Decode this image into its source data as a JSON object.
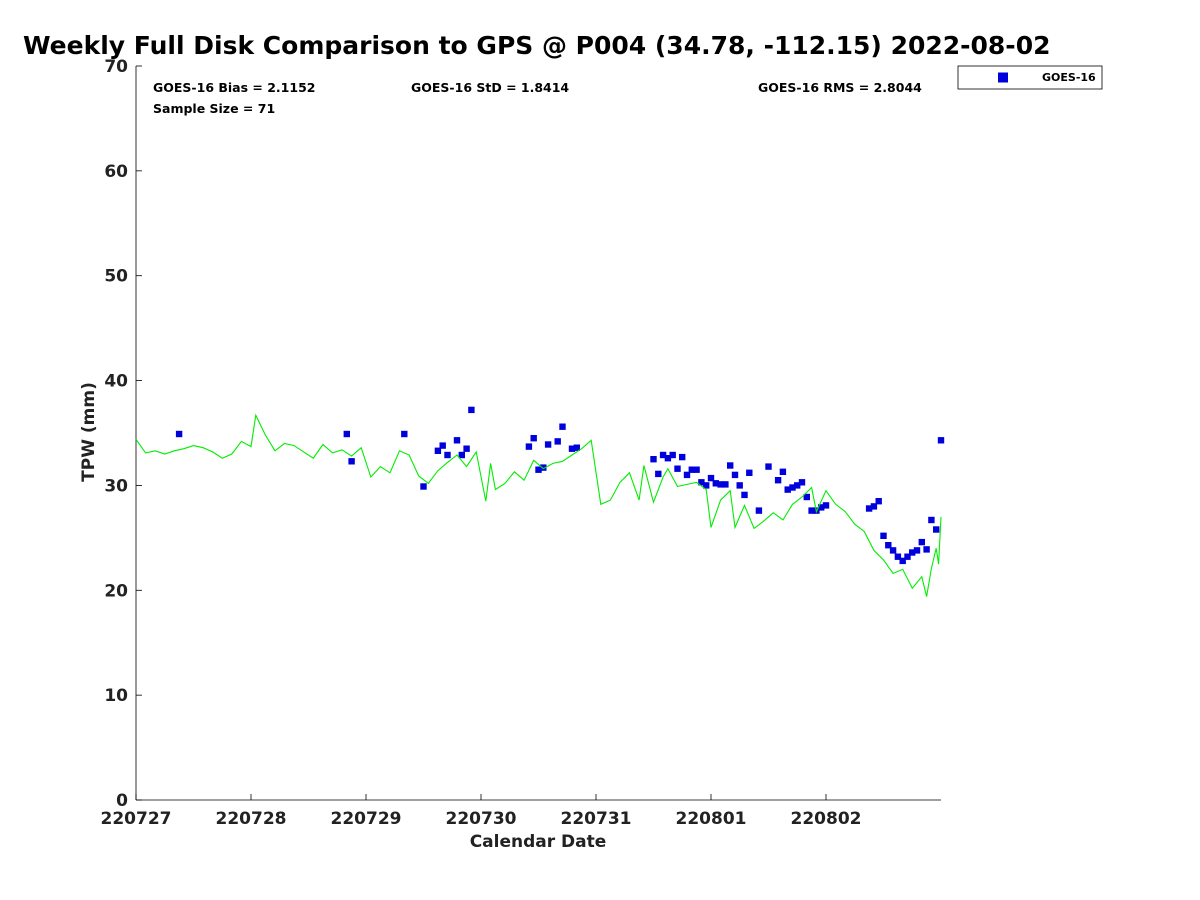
{
  "chart_data": {
    "type": "scatter",
    "title": "Weekly Full Disk Comparison to GPS @ P004 (34.78, -112.15) 2022-08-02",
    "xlabel": "Calendar Date",
    "ylabel": "TPW (mm)",
    "ylim": [
      0,
      70
    ],
    "xlim": [
      "2022-07-27",
      "2022-08-03"
    ],
    "yticks": [
      0,
      10,
      20,
      30,
      40,
      50,
      60,
      70
    ],
    "xticks": [
      "220727",
      "220728",
      "220729",
      "220730",
      "220731",
      "220801",
      "220802"
    ],
    "grid": false,
    "legend_position": "top-right",
    "stats": {
      "bias": "GOES-16 Bias = 2.1152",
      "std": "GOES-16 StD = 1.8414",
      "rms": "GOES-16 RMS = 2.8044",
      "sample": "Sample Size = 71"
    },
    "series": [
      {
        "name": "GOES-16",
        "kind": "scatter",
        "color": "#0000dd",
        "marker": "square",
        "points": [
          [
            "2022-07-27T09:00",
            34.9
          ],
          [
            "2022-07-28T20:00",
            34.9
          ],
          [
            "2022-07-28T21:00",
            32.3
          ],
          [
            "2022-07-29T08:00",
            34.9
          ],
          [
            "2022-07-29T12:00",
            29.9
          ],
          [
            "2022-07-29T15:00",
            33.3
          ],
          [
            "2022-07-29T16:00",
            33.8
          ],
          [
            "2022-07-29T17:00",
            32.9
          ],
          [
            "2022-07-29T19:00",
            34.3
          ],
          [
            "2022-07-29T20:00",
            32.9
          ],
          [
            "2022-07-29T21:00",
            33.5
          ],
          [
            "2022-07-29T22:00",
            37.2
          ],
          [
            "2022-07-30T10:00",
            33.7
          ],
          [
            "2022-07-30T11:00",
            34.5
          ],
          [
            "2022-07-30T12:00",
            31.5
          ],
          [
            "2022-07-30T13:00",
            31.7
          ],
          [
            "2022-07-30T14:00",
            33.9
          ],
          [
            "2022-07-30T16:00",
            34.2
          ],
          [
            "2022-07-30T17:00",
            35.6
          ],
          [
            "2022-07-30T19:00",
            33.5
          ],
          [
            "2022-07-30T20:00",
            33.6
          ],
          [
            "2022-07-31T12:00",
            32.5
          ],
          [
            "2022-07-31T13:00",
            31.1
          ],
          [
            "2022-07-31T14:00",
            32.9
          ],
          [
            "2022-07-31T15:00",
            32.6
          ],
          [
            "2022-07-31T16:00",
            32.9
          ],
          [
            "2022-07-31T17:00",
            31.6
          ],
          [
            "2022-07-31T18:00",
            32.7
          ],
          [
            "2022-07-31T19:00",
            31.0
          ],
          [
            "2022-07-31T20:00",
            31.5
          ],
          [
            "2022-07-31T21:00",
            31.5
          ],
          [
            "2022-07-31T22:00",
            30.3
          ],
          [
            "2022-07-31T23:00",
            30.0
          ],
          [
            "2022-08-01T00:00",
            30.7
          ],
          [
            "2022-08-01T01:00",
            30.2
          ],
          [
            "2022-08-01T02:00",
            30.1
          ],
          [
            "2022-08-01T03:00",
            30.1
          ],
          [
            "2022-08-01T04:00",
            31.9
          ],
          [
            "2022-08-01T05:00",
            31.0
          ],
          [
            "2022-08-01T06:00",
            30.0
          ],
          [
            "2022-08-01T07:00",
            29.1
          ],
          [
            "2022-08-01T08:00",
            31.2
          ],
          [
            "2022-08-01T10:00",
            27.6
          ],
          [
            "2022-08-01T12:00",
            31.8
          ],
          [
            "2022-08-01T14:00",
            30.5
          ],
          [
            "2022-08-01T15:00",
            31.3
          ],
          [
            "2022-08-01T16:00",
            29.6
          ],
          [
            "2022-08-01T17:00",
            29.8
          ],
          [
            "2022-08-01T18:00",
            30.0
          ],
          [
            "2022-08-01T19:00",
            30.3
          ],
          [
            "2022-08-01T20:00",
            28.9
          ],
          [
            "2022-08-01T21:00",
            27.6
          ],
          [
            "2022-08-01T22:00",
            27.6
          ],
          [
            "2022-08-01T23:00",
            27.9
          ],
          [
            "2022-08-02T00:00",
            28.1
          ],
          [
            "2022-08-02T09:00",
            27.8
          ],
          [
            "2022-08-02T10:00",
            28.0
          ],
          [
            "2022-08-02T11:00",
            28.5
          ],
          [
            "2022-08-02T12:00",
            25.2
          ],
          [
            "2022-08-02T13:00",
            24.3
          ],
          [
            "2022-08-02T14:00",
            23.8
          ],
          [
            "2022-08-02T15:00",
            23.2
          ],
          [
            "2022-08-02T16:00",
            22.8
          ],
          [
            "2022-08-02T17:00",
            23.2
          ],
          [
            "2022-08-02T18:00",
            23.6
          ],
          [
            "2022-08-02T19:00",
            23.8
          ],
          [
            "2022-08-02T20:00",
            24.6
          ],
          [
            "2022-08-02T21:00",
            23.9
          ],
          [
            "2022-08-02T22:00",
            26.7
          ],
          [
            "2022-08-02T23:00",
            25.8
          ],
          [
            "2022-08-03T00:00",
            34.3
          ]
        ]
      },
      {
        "kind": "line",
        "color": "#00ee00",
        "points": [
          [
            "2022-07-27T00:00",
            34.4
          ],
          [
            "2022-07-27T02:00",
            33.1
          ],
          [
            "2022-07-27T04:00",
            33.3
          ],
          [
            "2022-07-27T06:00",
            33.0
          ],
          [
            "2022-07-27T08:00",
            33.3
          ],
          [
            "2022-07-27T10:00",
            33.5
          ],
          [
            "2022-07-27T12:00",
            33.8
          ],
          [
            "2022-07-27T14:00",
            33.6
          ],
          [
            "2022-07-27T16:00",
            33.2
          ],
          [
            "2022-07-27T18:00",
            32.6
          ],
          [
            "2022-07-27T20:00",
            33.0
          ],
          [
            "2022-07-27T22:00",
            34.2
          ],
          [
            "2022-07-28T00:00",
            33.7
          ],
          [
            "2022-07-28T01:00",
            36.7
          ],
          [
            "2022-07-28T03:00",
            34.8
          ],
          [
            "2022-07-28T05:00",
            33.3
          ],
          [
            "2022-07-28T07:00",
            34.0
          ],
          [
            "2022-07-28T09:00",
            33.8
          ],
          [
            "2022-07-28T11:00",
            33.2
          ],
          [
            "2022-07-28T13:00",
            32.6
          ],
          [
            "2022-07-28T15:00",
            33.9
          ],
          [
            "2022-07-28T17:00",
            33.1
          ],
          [
            "2022-07-28T19:00",
            33.4
          ],
          [
            "2022-07-28T21:00",
            32.8
          ],
          [
            "2022-07-28T23:00",
            33.6
          ],
          [
            "2022-07-29T01:00",
            30.8
          ],
          [
            "2022-07-29T03:00",
            31.8
          ],
          [
            "2022-07-29T05:00",
            31.2
          ],
          [
            "2022-07-29T07:00",
            33.3
          ],
          [
            "2022-07-29T09:00",
            32.9
          ],
          [
            "2022-07-29T11:00",
            30.9
          ],
          [
            "2022-07-29T13:00",
            30.2
          ],
          [
            "2022-07-29T15:00",
            31.4
          ],
          [
            "2022-07-29T17:00",
            32.2
          ],
          [
            "2022-07-29T19:00",
            32.9
          ],
          [
            "2022-07-29T21:00",
            31.8
          ],
          [
            "2022-07-29T23:00",
            33.2
          ],
          [
            "2022-07-30T01:00",
            28.5
          ],
          [
            "2022-07-30T02:00",
            32.1
          ],
          [
            "2022-07-30T03:00",
            29.6
          ],
          [
            "2022-07-30T05:00",
            30.2
          ],
          [
            "2022-07-30T07:00",
            31.3
          ],
          [
            "2022-07-30T09:00",
            30.5
          ],
          [
            "2022-07-30T11:00",
            32.4
          ],
          [
            "2022-07-30T13:00",
            31.6
          ],
          [
            "2022-07-30T15:00",
            32.1
          ],
          [
            "2022-07-30T17:00",
            32.3
          ],
          [
            "2022-07-30T19:00",
            32.9
          ],
          [
            "2022-07-30T21:00",
            33.5
          ],
          [
            "2022-07-30T23:00",
            34.3
          ],
          [
            "2022-07-31T01:00",
            28.2
          ],
          [
            "2022-07-31T03:00",
            28.6
          ],
          [
            "2022-07-31T05:00",
            30.3
          ],
          [
            "2022-07-31T07:00",
            31.2
          ],
          [
            "2022-07-31T09:00",
            28.6
          ],
          [
            "2022-07-31T10:00",
            31.9
          ],
          [
            "2022-07-31T12:00",
            28.4
          ],
          [
            "2022-07-31T14:00",
            30.8
          ],
          [
            "2022-07-31T15:00",
            31.6
          ],
          [
            "2022-07-31T17:00",
            29.9
          ],
          [
            "2022-07-31T19:00",
            30.1
          ],
          [
            "2022-07-31T21:00",
            30.3
          ],
          [
            "2022-07-31T23:00",
            29.6
          ],
          [
            "2022-08-01T00:00",
            26.0
          ],
          [
            "2022-08-01T02:00",
            28.6
          ],
          [
            "2022-08-01T04:00",
            29.5
          ],
          [
            "2022-08-01T05:00",
            26.0
          ],
          [
            "2022-08-01T07:00",
            28.1
          ],
          [
            "2022-08-01T09:00",
            25.9
          ],
          [
            "2022-08-01T11:00",
            26.6
          ],
          [
            "2022-08-01T13:00",
            27.4
          ],
          [
            "2022-08-01T15:00",
            26.7
          ],
          [
            "2022-08-01T17:00",
            28.2
          ],
          [
            "2022-08-01T19:00",
            28.9
          ],
          [
            "2022-08-01T21:00",
            29.8
          ],
          [
            "2022-08-01T22:00",
            27.5
          ],
          [
            "2022-08-02T00:00",
            29.5
          ],
          [
            "2022-08-02T02:00",
            28.2
          ],
          [
            "2022-08-02T04:00",
            27.5
          ],
          [
            "2022-08-02T06:00",
            26.3
          ],
          [
            "2022-08-02T08:00",
            25.6
          ],
          [
            "2022-08-02T10:00",
            23.8
          ],
          [
            "2022-08-02T12:00",
            22.9
          ],
          [
            "2022-08-02T14:00",
            21.6
          ],
          [
            "2022-08-02T16:00",
            22.0
          ],
          [
            "2022-08-02T18:00",
            20.2
          ],
          [
            "2022-08-02T20:00",
            21.3
          ],
          [
            "2022-08-02T21:00",
            19.4
          ],
          [
            "2022-08-02T22:00",
            22.1
          ],
          [
            "2022-08-02T23:00",
            24.0
          ],
          [
            "2022-08-02T23:30",
            22.5
          ],
          [
            "2022-08-03T00:00",
            27.0
          ]
        ]
      }
    ]
  }
}
